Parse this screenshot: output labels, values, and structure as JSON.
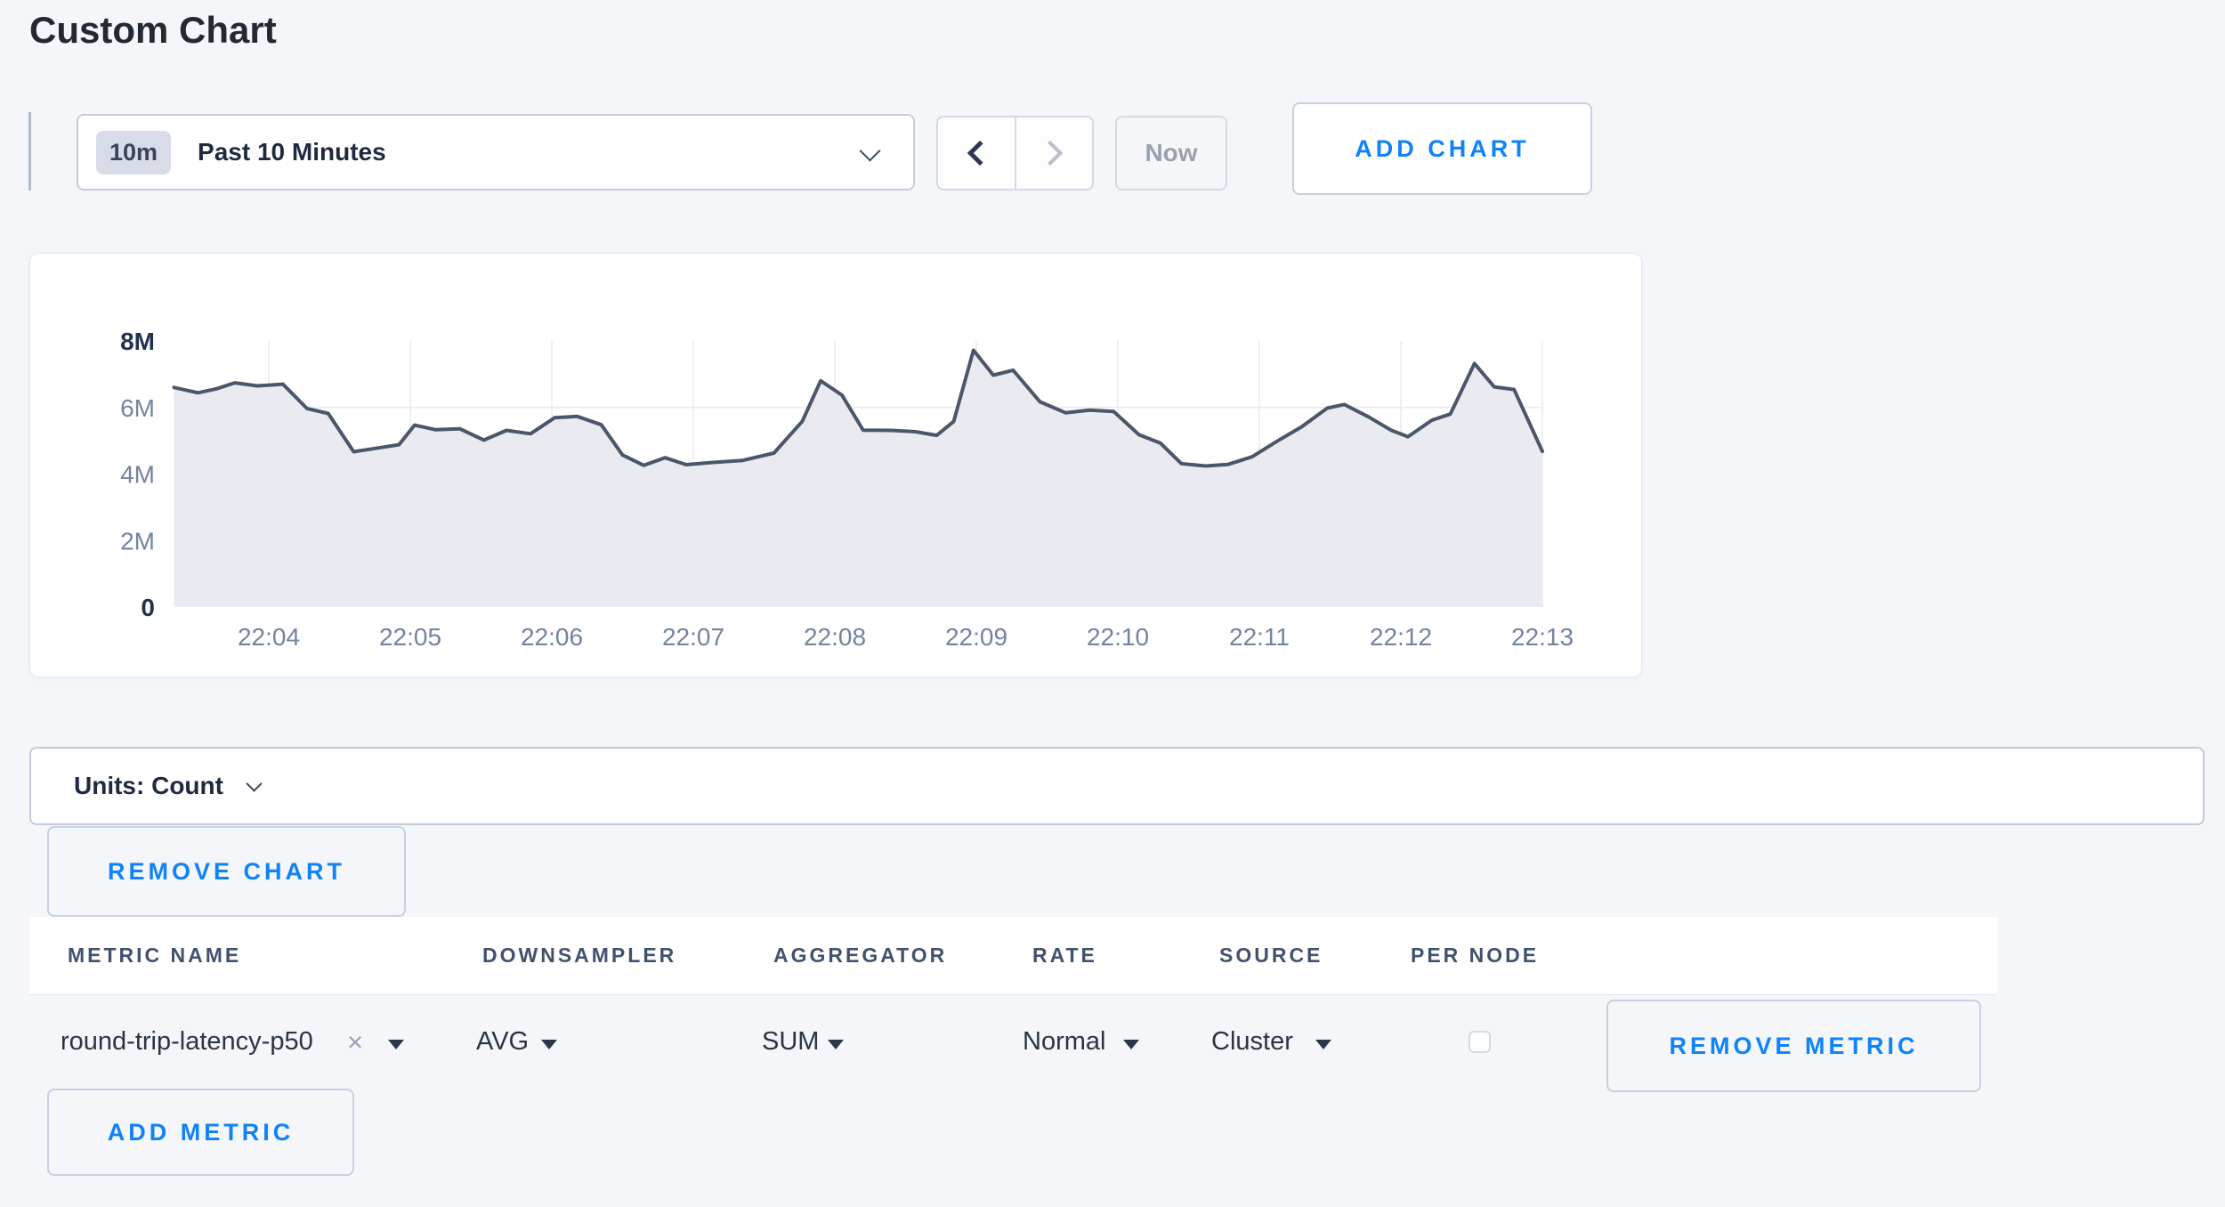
{
  "page": {
    "title": "Custom Chart",
    "background_color": "#f4f6fa",
    "accent_blue": "#0f83f7"
  },
  "icons": {
    "x_close": "×",
    "chevron_down": "v",
    "chevron_left": "<",
    "chevron_right": ">",
    "dropdown_caret": "▾"
  },
  "toolbar": {
    "time_range": {
      "badge": "10m",
      "label": "Past 10 Minutes"
    },
    "now_label": "Now",
    "add_chart_label": "ADD CHART"
  },
  "units_bar": {
    "label": "Units: Count"
  },
  "remove_chart_label": "REMOVE CHART",
  "metrics_table": {
    "columns": [
      "METRIC NAME",
      "DOWNSAMPLER",
      "AGGREGATOR",
      "RATE",
      "SOURCE",
      "PER NODE"
    ],
    "rows": [
      {
        "metric_name": "round-trip-latency-p50",
        "downsampler": "AVG",
        "aggregator": "SUM",
        "rate": "Normal",
        "source": "Cluster",
        "per_node_checked": false,
        "remove_label": "REMOVE METRIC"
      }
    ],
    "add_metric_label": "ADD METRIC"
  },
  "chart_data": {
    "type": "area",
    "title": "",
    "xlabel": "",
    "ylabel": "",
    "units": "Count",
    "ylim_millions": [
      0,
      8
    ],
    "grid": true,
    "legend": "none",
    "line_color": "#4a5669",
    "fill_color": "#e9ebf1",
    "grid_color": "#e7ebf3",
    "tick_color": "#74839f",
    "tick_bold_color": "#223052",
    "y_ticks": [
      {
        "value": 0,
        "label": "0",
        "bold": true
      },
      {
        "value": 2,
        "label": "2M",
        "bold": false
      },
      {
        "value": 4,
        "label": "4M",
        "bold": false
      },
      {
        "value": 6,
        "label": "6M",
        "bold": false
      },
      {
        "value": 8,
        "label": "8M",
        "bold": true
      }
    ],
    "x_ticks": [
      {
        "minute": 4,
        "label": "22:04"
      },
      {
        "minute": 5,
        "label": "22:05"
      },
      {
        "minute": 6,
        "label": "22:06"
      },
      {
        "minute": 7,
        "label": "22:07"
      },
      {
        "minute": 8,
        "label": "22:08"
      },
      {
        "minute": 9,
        "label": "22:09"
      },
      {
        "minute": 10,
        "label": "22:10"
      },
      {
        "minute": 11,
        "label": "22:11"
      },
      {
        "minute": 12,
        "label": "22:12"
      },
      {
        "minute": 13,
        "label": "22:13"
      }
    ],
    "series": [
      {
        "name": "round-trip-latency-p50",
        "x_unit": "minutes_after_22:00",
        "y_unit": "millions",
        "points": [
          [
            3.33,
            6.6
          ],
          [
            3.5,
            6.44
          ],
          [
            3.63,
            6.56
          ],
          [
            3.76,
            6.74
          ],
          [
            3.92,
            6.65
          ],
          [
            4.1,
            6.7
          ],
          [
            4.27,
            5.97
          ],
          [
            4.42,
            5.82
          ],
          [
            4.6,
            4.67
          ],
          [
            4.77,
            4.78
          ],
          [
            4.92,
            4.88
          ],
          [
            5.03,
            5.47
          ],
          [
            5.18,
            5.33
          ],
          [
            5.35,
            5.36
          ],
          [
            5.52,
            5.02
          ],
          [
            5.68,
            5.31
          ],
          [
            5.85,
            5.21
          ],
          [
            6.02,
            5.69
          ],
          [
            6.18,
            5.73
          ],
          [
            6.35,
            5.48
          ],
          [
            6.5,
            4.57
          ],
          [
            6.65,
            4.26
          ],
          [
            6.8,
            4.49
          ],
          [
            6.95,
            4.28
          ],
          [
            7.12,
            4.34
          ],
          [
            7.35,
            4.41
          ],
          [
            7.57,
            4.63
          ],
          [
            7.77,
            5.58
          ],
          [
            7.9,
            6.8
          ],
          [
            8.05,
            6.37
          ],
          [
            8.2,
            5.32
          ],
          [
            8.4,
            5.31
          ],
          [
            8.57,
            5.27
          ],
          [
            8.72,
            5.16
          ],
          [
            8.84,
            5.58
          ],
          [
            8.98,
            7.72
          ],
          [
            9.12,
            6.97
          ],
          [
            9.26,
            7.12
          ],
          [
            9.45,
            6.17
          ],
          [
            9.63,
            5.84
          ],
          [
            9.8,
            5.92
          ],
          [
            9.97,
            5.88
          ],
          [
            10.15,
            5.18
          ],
          [
            10.3,
            4.93
          ],
          [
            10.45,
            4.31
          ],
          [
            10.62,
            4.24
          ],
          [
            10.78,
            4.29
          ],
          [
            10.95,
            4.52
          ],
          [
            11.12,
            4.97
          ],
          [
            11.3,
            5.42
          ],
          [
            11.48,
            5.98
          ],
          [
            11.6,
            6.09
          ],
          [
            11.77,
            5.72
          ],
          [
            11.93,
            5.32
          ],
          [
            12.05,
            5.12
          ],
          [
            12.22,
            5.62
          ],
          [
            12.35,
            5.8
          ],
          [
            12.52,
            7.32
          ],
          [
            12.66,
            6.62
          ],
          [
            12.8,
            6.54
          ],
          [
            13.0,
            4.68
          ]
        ]
      }
    ]
  }
}
